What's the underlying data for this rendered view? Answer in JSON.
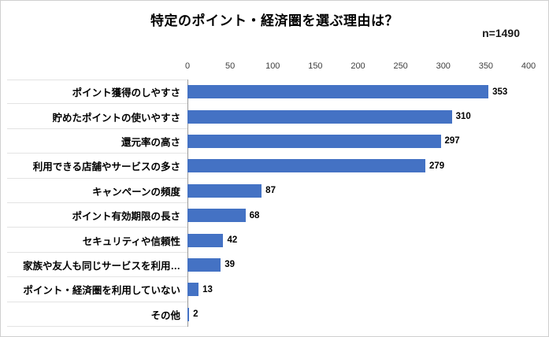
{
  "chart": {
    "title": "特定のポイント・経済圏を選ぶ理由は？",
    "n_label": "n=1490"
  },
  "chart_data": {
    "type": "bar",
    "orientation": "horizontal",
    "title": "特定のポイント・経済圏を選ぶ理由は？",
    "annotation": "n=1490",
    "categories": [
      "ポイント獲得のしやすさ",
      "貯めたポイントの使いやすさ",
      "還元率の高さ",
      "利用できる店舗やサービスの多さ",
      "キャンペーンの頻度",
      "ポイント有効期限の長さ",
      "セキュリティや信頼性",
      "家族や友人も同じサービスを利用…",
      "ポイント・経済圏を利用していない",
      "その他"
    ],
    "values": [
      353,
      310,
      297,
      279,
      87,
      68,
      42,
      39,
      13,
      2
    ],
    "xlim": [
      0,
      400
    ],
    "xticks": [
      0,
      50,
      100,
      150,
      200,
      250,
      300,
      350,
      400
    ],
    "bar_color": "#4472C4",
    "value_labels": true,
    "legend": false,
    "grid": false,
    "axis_position": "top"
  }
}
